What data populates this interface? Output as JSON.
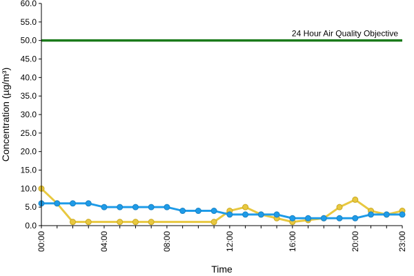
{
  "chart_data": {
    "type": "line",
    "title": "",
    "xlabel": "Time",
    "ylabel": "Concentration (µg/m³)",
    "ylim": [
      0,
      60
    ],
    "y_ticks": [
      "0.0",
      "5.0",
      "10.0",
      "15.0",
      "20.0",
      "25.0",
      "30.0",
      "35.0",
      "40.0",
      "45.0",
      "50.0",
      "55.0",
      "60.0"
    ],
    "x_ticks": [
      "00:00",
      "04:00",
      "08:00",
      "12:00",
      "16:00",
      "20:00",
      "23:00"
    ],
    "x_hours": [
      0,
      1,
      2,
      3,
      4,
      5,
      6,
      7,
      8,
      9,
      10,
      11,
      12,
      13,
      14,
      15,
      16,
      17,
      18,
      19,
      20,
      21,
      22,
      23
    ],
    "grid": false,
    "legend": "none",
    "series": [
      {
        "color": "#e8c840",
        "values": [
          10,
          6,
          1,
          1,
          null,
          1,
          1,
          1,
          null,
          null,
          null,
          1,
          4,
          5,
          3,
          2,
          1,
          1.5,
          2,
          5,
          7,
          4,
          3,
          4
        ]
      },
      {
        "color": "#1e9be8",
        "values": [
          6,
          6,
          6,
          6,
          5,
          5,
          5,
          5,
          5,
          4,
          4,
          4,
          3,
          3,
          3,
          3,
          2,
          2,
          2,
          2,
          2,
          3,
          3,
          3
        ]
      }
    ],
    "reference_line": {
      "value": 50,
      "label": "24 Hour Air Quality Objective",
      "color": "#1a7a1a"
    }
  }
}
